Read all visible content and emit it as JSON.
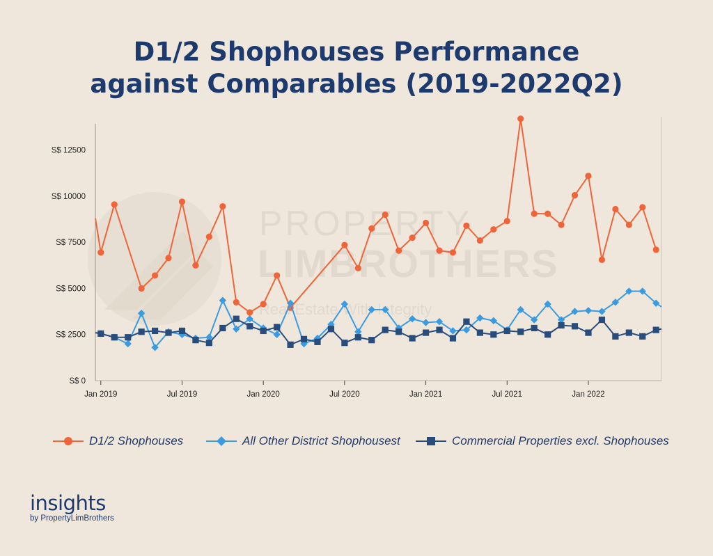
{
  "title_lines": [
    "D1/2 Shophouses Performance",
    "against Comparables (2019-2022Q2)"
  ],
  "watermark": {
    "line1": "PROPERTY",
    "line2": "LIMBROTHERS",
    "tagline": "Real Estate With Integrity"
  },
  "branding": {
    "word": "insights",
    "sub": "by PropertyLimBrothers"
  },
  "colors": {
    "d12": "#f0643a",
    "other": "#3a9be0",
    "commercial": "#284c7c",
    "title": "#1d3a6e",
    "background": "#efe7dc"
  },
  "chart_data": {
    "type": "line",
    "title": "D1/2 Shophouses Performance against Comparables (2019-2022Q2)",
    "xlabel": "",
    "ylabel": "",
    "x_ticks": [
      "Jan 2019",
      "Jul 2019",
      "Jan 2020",
      "Jul 2020",
      "Jan 2021",
      "Jul 2021",
      "Jan 2022"
    ],
    "y_ticks": [
      "S$ 0",
      "S$ 2500",
      "S$ 5000",
      "S$ 7500",
      "S$ 10000",
      "S$ 12500"
    ],
    "y_tick_values": [
      0,
      2500,
      5000,
      7500,
      10000,
      12500
    ],
    "ylim": [
      0,
      14300
    ],
    "x_range_months": [
      -0.4,
      41.4
    ],
    "grid": false,
    "legend_position": "bottom",
    "series": [
      {
        "name": "D1/2 Shophouses",
        "marker": "circle",
        "color": "#f0643a",
        "points": [
          [
            -0.4,
            8800
          ],
          [
            0,
            6950
          ],
          [
            1,
            9550
          ],
          [
            3,
            5000
          ],
          [
            4,
            5700
          ],
          [
            5,
            6650
          ],
          [
            6,
            9700
          ],
          [
            7,
            6250
          ],
          [
            8,
            7800
          ],
          [
            9,
            9450
          ],
          [
            10,
            4250
          ],
          [
            11,
            3700
          ],
          [
            12,
            4150
          ],
          [
            13,
            5700
          ],
          [
            14,
            3950
          ],
          [
            18,
            7350
          ],
          [
            19,
            6100
          ],
          [
            20,
            8250
          ],
          [
            21,
            9000
          ],
          [
            22,
            7050
          ],
          [
            23,
            7750
          ],
          [
            24,
            8550
          ],
          [
            25,
            7050
          ],
          [
            26,
            6950
          ],
          [
            27,
            8400
          ],
          [
            28,
            7600
          ],
          [
            29,
            8200
          ],
          [
            30,
            8650
          ],
          [
            31,
            14200
          ],
          [
            32,
            9050
          ],
          [
            33,
            9050
          ],
          [
            34,
            8450
          ],
          [
            35,
            10050
          ],
          [
            36,
            11100
          ],
          [
            37,
            6550
          ],
          [
            38,
            9300
          ],
          [
            39,
            8450
          ],
          [
            40,
            9400
          ],
          [
            41,
            7100
          ]
        ]
      },
      {
        "name": "All Other District Shophousest",
        "marker": "diamond",
        "color": "#3a9be0",
        "points": [
          [
            -0.4,
            2600
          ],
          [
            0,
            2550
          ],
          [
            1,
            2350
          ],
          [
            2,
            2000
          ],
          [
            3,
            3650
          ],
          [
            4,
            1800
          ],
          [
            5,
            2650
          ],
          [
            6,
            2500
          ],
          [
            7,
            2300
          ],
          [
            8,
            2350
          ],
          [
            9,
            4350
          ],
          [
            10,
            2800
          ],
          [
            11,
            3350
          ],
          [
            12,
            2850
          ],
          [
            13,
            2500
          ],
          [
            14,
            4200
          ],
          [
            15,
            2000
          ],
          [
            16,
            2300
          ],
          [
            17,
            3050
          ],
          [
            18,
            4150
          ],
          [
            19,
            2650
          ],
          [
            20,
            3850
          ],
          [
            21,
            3850
          ],
          [
            22,
            2850
          ],
          [
            23,
            3350
          ],
          [
            24,
            3150
          ],
          [
            25,
            3200
          ],
          [
            26,
            2700
          ],
          [
            27,
            2750
          ],
          [
            28,
            3400
          ],
          [
            29,
            3250
          ],
          [
            30,
            2750
          ],
          [
            31,
            3850
          ],
          [
            32,
            3300
          ],
          [
            33,
            4150
          ],
          [
            34,
            3300
          ],
          [
            35,
            3750
          ],
          [
            36,
            3800
          ],
          [
            37,
            3750
          ],
          [
            38,
            4250
          ],
          [
            39,
            4850
          ],
          [
            40,
            4850
          ],
          [
            41,
            4200
          ],
          [
            41.4,
            4000
          ]
        ]
      },
      {
        "name": "Commercial Properties excl. Shophouses",
        "marker": "square",
        "color": "#284c7c",
        "points": [
          [
            -0.4,
            2600
          ],
          [
            0,
            2550
          ],
          [
            1,
            2350
          ],
          [
            2,
            2350
          ],
          [
            3,
            2650
          ],
          [
            4,
            2700
          ],
          [
            5,
            2600
          ],
          [
            6,
            2700
          ],
          [
            7,
            2200
          ],
          [
            8,
            2050
          ],
          [
            9,
            2850
          ],
          [
            10,
            3350
          ],
          [
            11,
            2950
          ],
          [
            12,
            2700
          ],
          [
            13,
            2900
          ],
          [
            14,
            1950
          ],
          [
            15,
            2250
          ],
          [
            16,
            2100
          ],
          [
            17,
            2800
          ],
          [
            18,
            2050
          ],
          [
            19,
            2350
          ],
          [
            20,
            2200
          ],
          [
            21,
            2750
          ],
          [
            22,
            2650
          ],
          [
            23,
            2300
          ],
          [
            24,
            2600
          ],
          [
            25,
            2750
          ],
          [
            26,
            2300
          ],
          [
            27,
            3200
          ],
          [
            28,
            2600
          ],
          [
            29,
            2500
          ],
          [
            30,
            2700
          ],
          [
            31,
            2650
          ],
          [
            32,
            2850
          ],
          [
            33,
            2500
          ],
          [
            34,
            3000
          ],
          [
            35,
            2950
          ],
          [
            36,
            2600
          ],
          [
            37,
            3300
          ],
          [
            38,
            2400
          ],
          [
            39,
            2600
          ],
          [
            40,
            2400
          ],
          [
            41,
            2750
          ],
          [
            41.4,
            2800
          ]
        ]
      }
    ]
  }
}
